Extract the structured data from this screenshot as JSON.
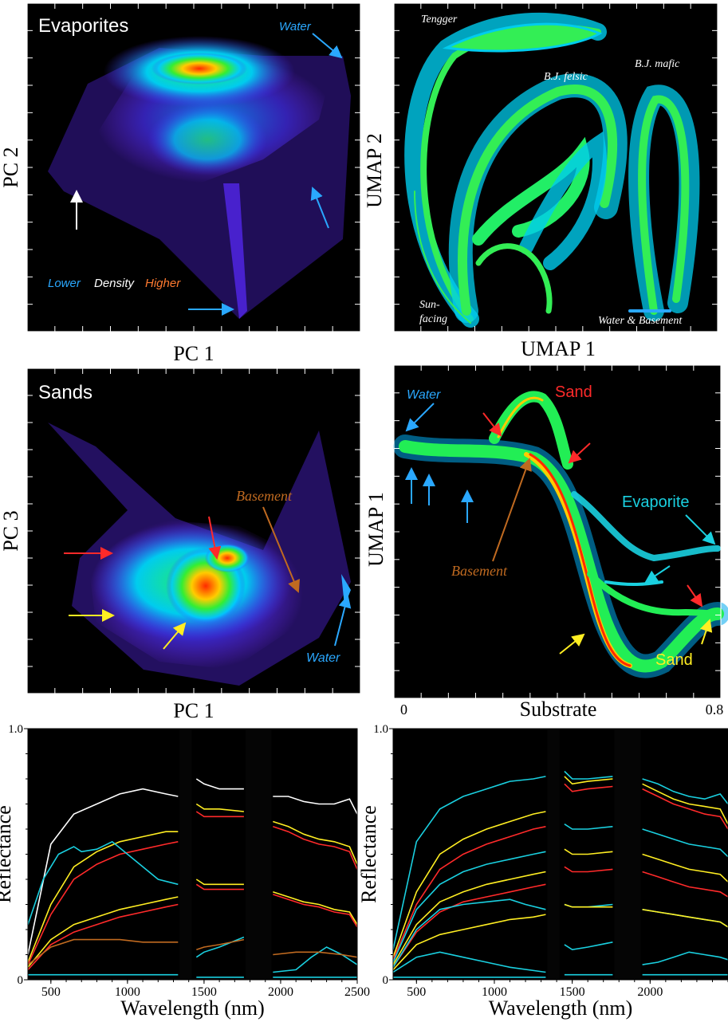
{
  "colors": {
    "panel_bg": "#000000",
    "axis": "#ffffff",
    "density_low": "#6a2cff",
    "density_mid": "#00e5ff",
    "density_green": "#22ee44",
    "density_high": "#ff2200",
    "water": "#2aa8ff",
    "sand_red": "#ff2a2a",
    "sand_yellow": "#ffee22",
    "basement": "#c06a20",
    "evaporite": "#1ad0e0",
    "white": "#ffffff"
  },
  "chart_data": [
    {
      "id": "evaporites-pc",
      "type": "heatmap",
      "title": "Evaporites",
      "xlabel": "PC 1",
      "ylabel": "PC 2",
      "annotations": [
        {
          "text": "Water",
          "color": "#2aa8ff"
        },
        {
          "text": "Lower",
          "color": "#2aa8ff"
        },
        {
          "text": "Density",
          "color": "#ffffff"
        },
        {
          "text": "Higher",
          "color": "#ff7a30"
        }
      ]
    },
    {
      "id": "umap-map",
      "type": "heatmap",
      "xlabel": "UMAP 1",
      "ylabel": "UMAP 2",
      "annotations": [
        {
          "text": "Tengger"
        },
        {
          "text": "B.J. felsic"
        },
        {
          "text": "B.J. mafic"
        },
        {
          "text": "Sun-"
        },
        {
          "text": "facing"
        },
        {
          "text": "Water & Basement"
        }
      ]
    },
    {
      "id": "sands-pc",
      "type": "heatmap",
      "title": "Sands",
      "xlabel": "PC 1",
      "ylabel": "PC 3",
      "annotations": [
        {
          "text": "Basement",
          "color": "#c06a20"
        },
        {
          "text": "Water",
          "color": "#2aa8ff"
        }
      ]
    },
    {
      "id": "substrate-umap",
      "type": "heatmap",
      "xlabel": "Substrate",
      "ylabel": "UMAP 1",
      "xlim": [
        0,
        0.8
      ],
      "xticks": [
        "0",
        "0.8"
      ],
      "annotations": [
        {
          "text": "Water",
          "color": "#2aa8ff"
        },
        {
          "text": "Sand",
          "color": "#ff2a2a"
        },
        {
          "text": "Evaporite",
          "color": "#1ad0e0"
        },
        {
          "text": "Basement",
          "color": "#c06a20"
        },
        {
          "text": "Sand",
          "color": "#ffee22"
        }
      ]
    },
    {
      "id": "spectra-left",
      "type": "line",
      "xlabel": "Wavelength (nm)",
      "ylabel": "Reflectance",
      "xlim": [
        350,
        2500
      ],
      "ylim": [
        0,
        1.0
      ],
      "xticks": [
        "500",
        "1000",
        "1500",
        "2000",
        "2500"
      ],
      "yticks": [
        "0",
        "1.0"
      ],
      "gaps": [
        [
          1330,
          1430
        ],
        [
          1760,
          1950
        ]
      ],
      "series": [
        {
          "color": "#ffffff",
          "x": [
            350,
            500,
            650,
            800,
            950,
            1100,
            1250,
            1330,
            1450,
            1500,
            1600,
            1760,
            1950,
            2050,
            2150,
            2250,
            2350,
            2450,
            2500
          ],
          "y": [
            0.1,
            0.54,
            0.66,
            0.7,
            0.74,
            0.76,
            0.74,
            0.73,
            0.8,
            0.78,
            0.76,
            0.76,
            0.73,
            0.73,
            0.71,
            0.7,
            0.7,
            0.72,
            0.66
          ]
        },
        {
          "color": "#ffee22",
          "x": [
            350,
            500,
            650,
            800,
            950,
            1100,
            1250,
            1330,
            1450,
            1500,
            1600,
            1760,
            1950,
            2050,
            2150,
            2250,
            2350,
            2450,
            2500
          ],
          "y": [
            0.07,
            0.3,
            0.45,
            0.51,
            0.55,
            0.57,
            0.59,
            0.59,
            0.7,
            0.68,
            0.68,
            0.67,
            0.63,
            0.61,
            0.58,
            0.56,
            0.55,
            0.53,
            0.46
          ]
        },
        {
          "color": "#ff2a2a",
          "x": [
            350,
            500,
            650,
            800,
            950,
            1100,
            1250,
            1330,
            1450,
            1500,
            1600,
            1760,
            1950,
            2050,
            2150,
            2250,
            2350,
            2450,
            2500
          ],
          "y": [
            0.06,
            0.26,
            0.4,
            0.46,
            0.5,
            0.52,
            0.54,
            0.55,
            0.67,
            0.65,
            0.65,
            0.65,
            0.61,
            0.59,
            0.56,
            0.54,
            0.53,
            0.51,
            0.44
          ]
        },
        {
          "color": "#1ad0e0",
          "x": [
            350,
            450,
            550,
            650,
            700,
            800,
            900,
            1000,
            1100,
            1200,
            1330,
            1450,
            1500,
            1600,
            1760,
            1950,
            2100,
            2200,
            2300,
            2400,
            2500
          ],
          "y": [
            0.22,
            0.4,
            0.5,
            0.53,
            0.51,
            0.52,
            0.55,
            0.5,
            0.45,
            0.4,
            0.38,
            0.09,
            0.11,
            0.13,
            0.17,
            0.03,
            0.04,
            0.09,
            0.13,
            0.1,
            0.06
          ]
        },
        {
          "color": "#ffee22",
          "x": [
            350,
            500,
            650,
            800,
            950,
            1100,
            1250,
            1330,
            1450,
            1500,
            1600,
            1760,
            1950,
            2050,
            2150,
            2250,
            2350,
            2450,
            2500
          ],
          "y": [
            0.05,
            0.16,
            0.22,
            0.25,
            0.28,
            0.3,
            0.32,
            0.33,
            0.4,
            0.38,
            0.38,
            0.38,
            0.35,
            0.33,
            0.31,
            0.3,
            0.28,
            0.27,
            0.22
          ]
        },
        {
          "color": "#ff2a2a",
          "x": [
            350,
            500,
            650,
            800,
            950,
            1100,
            1250,
            1330,
            1450,
            1500,
            1600,
            1760,
            1950,
            2050,
            2150,
            2250,
            2350,
            2450,
            2500
          ],
          "y": [
            0.04,
            0.14,
            0.19,
            0.22,
            0.25,
            0.27,
            0.29,
            0.3,
            0.38,
            0.36,
            0.36,
            0.36,
            0.34,
            0.32,
            0.3,
            0.29,
            0.27,
            0.26,
            0.21
          ]
        },
        {
          "color": "#c06a20",
          "x": [
            350,
            500,
            650,
            800,
            950,
            1100,
            1250,
            1330,
            1450,
            1500,
            1600,
            1760,
            1950,
            2100,
            2250,
            2400,
            2500
          ],
          "y": [
            0.06,
            0.13,
            0.16,
            0.16,
            0.16,
            0.15,
            0.15,
            0.15,
            0.12,
            0.13,
            0.14,
            0.16,
            0.1,
            0.11,
            0.11,
            0.1,
            0.09
          ]
        },
        {
          "color": "#1ad0e0",
          "x": [
            350,
            600,
            900,
            1200,
            1330,
            1450,
            1760,
            1950,
            2200,
            2500
          ],
          "y": [
            0.02,
            0.02,
            0.02,
            0.02,
            0.02,
            0.01,
            0.01,
            0.01,
            0.01,
            0.01
          ]
        }
      ]
    },
    {
      "id": "spectra-right",
      "type": "line",
      "xlabel": "Wavelength (nm)",
      "ylabel": "Reflectance",
      "xlim": [
        350,
        2500
      ],
      "ylim": [
        0,
        1.0
      ],
      "xticks": [
        "500",
        "1000",
        "1500",
        "2000"
      ],
      "yticks": [
        "0",
        "1.0"
      ],
      "gaps": [
        [
          1330,
          1430
        ],
        [
          1760,
          1950
        ]
      ],
      "series": [
        {
          "color": "#1ad0e0",
          "x": [
            350,
            500,
            650,
            800,
            950,
            1100,
            1250,
            1330,
            1450,
            1500,
            1600,
            1760,
            1950,
            2050,
            2150,
            2250,
            2350,
            2450,
            2500
          ],
          "y": [
            0.12,
            0.55,
            0.68,
            0.73,
            0.76,
            0.79,
            0.8,
            0.81,
            0.83,
            0.8,
            0.8,
            0.81,
            0.8,
            0.78,
            0.75,
            0.73,
            0.72,
            0.74,
            0.7
          ]
        },
        {
          "color": "#ffee22",
          "x": [
            350,
            500,
            650,
            800,
            950,
            1100,
            1250,
            1330,
            1450,
            1500,
            1600,
            1760,
            1950,
            2050,
            2150,
            2250,
            2350,
            2450,
            2500
          ],
          "y": [
            0.09,
            0.35,
            0.5,
            0.56,
            0.6,
            0.63,
            0.66,
            0.67,
            0.81,
            0.78,
            0.79,
            0.8,
            0.78,
            0.75,
            0.72,
            0.7,
            0.69,
            0.68,
            0.62
          ]
        },
        {
          "color": "#ff2a2a",
          "x": [
            350,
            500,
            650,
            800,
            950,
            1100,
            1250,
            1330,
            1450,
            1500,
            1600,
            1760,
            1950,
            2050,
            2150,
            2250,
            2350,
            2450,
            2500
          ],
          "y": [
            0.08,
            0.3,
            0.44,
            0.5,
            0.54,
            0.57,
            0.6,
            0.61,
            0.78,
            0.75,
            0.76,
            0.77,
            0.76,
            0.73,
            0.7,
            0.68,
            0.66,
            0.65,
            0.6
          ]
        },
        {
          "color": "#1ad0e0",
          "x": [
            350,
            500,
            650,
            800,
            950,
            1100,
            1250,
            1330,
            1450,
            1500,
            1600,
            1760,
            1950,
            2050,
            2150,
            2250,
            2350,
            2450,
            2500
          ],
          "y": [
            0.07,
            0.28,
            0.38,
            0.43,
            0.46,
            0.48,
            0.5,
            0.51,
            0.62,
            0.6,
            0.6,
            0.61,
            0.6,
            0.58,
            0.56,
            0.54,
            0.53,
            0.52,
            0.49
          ]
        },
        {
          "color": "#ffee22",
          "x": [
            350,
            500,
            650,
            800,
            950,
            1100,
            1250,
            1330,
            1450,
            1500,
            1600,
            1760,
            1950,
            2050,
            2150,
            2250,
            2350,
            2450,
            2500
          ],
          "y": [
            0.06,
            0.22,
            0.31,
            0.35,
            0.38,
            0.4,
            0.42,
            0.43,
            0.52,
            0.5,
            0.5,
            0.51,
            0.5,
            0.48,
            0.46,
            0.44,
            0.43,
            0.42,
            0.39
          ]
        },
        {
          "color": "#ff2a2a",
          "x": [
            350,
            500,
            650,
            800,
            950,
            1100,
            1250,
            1330,
            1450,
            1500,
            1600,
            1760,
            1950,
            2050,
            2150,
            2250,
            2350,
            2450,
            2500
          ],
          "y": [
            0.05,
            0.19,
            0.27,
            0.31,
            0.33,
            0.35,
            0.37,
            0.38,
            0.45,
            0.43,
            0.43,
            0.44,
            0.43,
            0.41,
            0.39,
            0.37,
            0.36,
            0.35,
            0.33
          ]
        },
        {
          "color": "#1ad0e0",
          "x": [
            350,
            500,
            650,
            800,
            950,
            1100,
            1200,
            1330,
            1450,
            1500,
            1600,
            1760,
            1950,
            2050,
            2150,
            2250,
            2350,
            2450,
            2500
          ],
          "y": [
            0.05,
            0.2,
            0.28,
            0.3,
            0.31,
            0.32,
            0.3,
            0.28,
            0.3,
            0.29,
            0.29,
            0.3,
            0.28,
            0.27,
            0.26,
            0.25,
            0.24,
            0.23,
            0.21
          ]
        },
        {
          "color": "#ffee22",
          "x": [
            350,
            500,
            650,
            800,
            950,
            1100,
            1250,
            1330,
            1450,
            1500,
            1600,
            1760,
            1950,
            2050,
            2150,
            2250,
            2350,
            2450,
            2500
          ],
          "y": [
            0.04,
            0.14,
            0.18,
            0.2,
            0.22,
            0.24,
            0.25,
            0.26,
            0.3,
            0.29,
            0.29,
            0.29,
            0.28,
            0.27,
            0.26,
            0.25,
            0.24,
            0.23,
            0.21
          ]
        },
        {
          "color": "#1ad0e0",
          "x": [
            350,
            500,
            650,
            800,
            950,
            1100,
            1330,
            1450,
            1500,
            1600,
            1760,
            1950,
            2050,
            2150,
            2250,
            2350,
            2450,
            2500
          ],
          "y": [
            0.03,
            0.09,
            0.11,
            0.09,
            0.07,
            0.05,
            0.03,
            0.14,
            0.12,
            0.13,
            0.15,
            0.06,
            0.07,
            0.09,
            0.11,
            0.1,
            0.09,
            0.08
          ]
        },
        {
          "color": "#1ad0e0",
          "x": [
            350,
            600,
            900,
            1200,
            1330,
            1450,
            1760,
            1950,
            2200,
            2500
          ],
          "y": [
            0.01,
            0.01,
            0.01,
            0.01,
            0.01,
            0.02,
            0.02,
            0.02,
            0.02,
            0.02
          ]
        }
      ]
    }
  ]
}
